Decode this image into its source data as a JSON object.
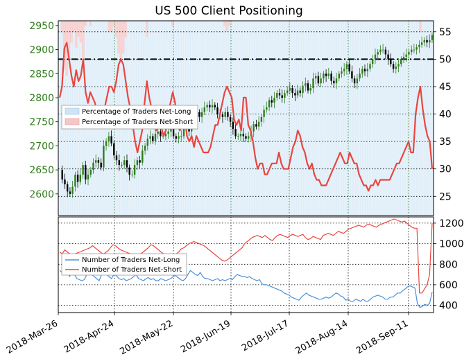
{
  "chart_data": [
    {
      "type": "line",
      "title": "US 500 Client Positioning",
      "xlabel": "",
      "ylabel_left": "",
      "ylabel_right": "",
      "x_ticks": [
        "2018-Mar-26",
        "2018-Apr-24",
        "2018-May-22",
        "2018-Jun-19",
        "2018-Jul-17",
        "2018-Aug-14",
        "2018-Sep-11"
      ],
      "left_axis": {
        "ticks": [
          2600,
          2650,
          2700,
          2750,
          2800,
          2850,
          2900,
          2950
        ],
        "ylim": [
          2555,
          2960
        ],
        "color": "#2f7d1d"
      },
      "right_axis": {
        "ticks": [
          25,
          30,
          35,
          40,
          45,
          50,
          55
        ],
        "ylim": [
          21.5,
          57
        ]
      },
      "legend": {
        "placement": "center-left",
        "entries": [
          "Percentage of Traders Net-Long",
          "Percentage of Traders Net-Short"
        ]
      },
      "grid": true,
      "reference_line": 50,
      "series": [
        {
          "name": "Percentage of Traders Net-Short",
          "color": "#e8463f",
          "axis": "right",
          "values": [
            43,
            45,
            52,
            53,
            50,
            47,
            45,
            48,
            46,
            47,
            50,
            44,
            42,
            44,
            43,
            42,
            40,
            40,
            39,
            41,
            43,
            45,
            45,
            44,
            46,
            49,
            50,
            49,
            46,
            43,
            41,
            38,
            35,
            33,
            35,
            37,
            42,
            46,
            43,
            41,
            40,
            37,
            38,
            38,
            36,
            37,
            40,
            42,
            44,
            42,
            38,
            37,
            38,
            40,
            36,
            35,
            36,
            34,
            36,
            35,
            34,
            33,
            33,
            33,
            34,
            36,
            38,
            38,
            40,
            42,
            44,
            45,
            44,
            43,
            39,
            38,
            39,
            37,
            43,
            43,
            38,
            37,
            35,
            32,
            30,
            31,
            31,
            29,
            29,
            30,
            31,
            31,
            31,
            33,
            31,
            30,
            30,
            30,
            32,
            34,
            35,
            37,
            36,
            34,
            33,
            31,
            30,
            31,
            29,
            28,
            28,
            27,
            27,
            27,
            28,
            29,
            30,
            31,
            32,
            33,
            32,
            31,
            31,
            33,
            32,
            31,
            31,
            29,
            28,
            27,
            27,
            26,
            27,
            27,
            28,
            27,
            28,
            28,
            28,
            28,
            28,
            29,
            30,
            31,
            31,
            32,
            33,
            34,
            35,
            33,
            33,
            40,
            43,
            45,
            41,
            38,
            36,
            35,
            30
          ]
        },
        {
          "name": "Percentage of Traders Net-Long",
          "color": "#4a90d9",
          "axis": "right",
          "note": "complement of net-short (100 - net-short); drawn as band fill only"
        },
        {
          "name": "US 500 price",
          "type": "candlestick",
          "axis": "left",
          "values": [
            2650,
            2630,
            2620,
            2605,
            2600,
            2615,
            2640,
            2625,
            2640,
            2660,
            2630,
            2640,
            2650,
            2665,
            2670,
            2665,
            2655,
            2700,
            2710,
            2720,
            2705,
            2680,
            2670,
            2660,
            2660,
            2670,
            2655,
            2640,
            2640,
            2660,
            2670,
            2665,
            2690,
            2700,
            2715,
            2720,
            2710,
            2725,
            2730,
            2720,
            2720,
            2725,
            2730,
            2735,
            2720,
            2715,
            2720,
            2720,
            2740,
            2745,
            2730,
            2740,
            2755,
            2770,
            2760,
            2770,
            2780,
            2785,
            2780,
            2785,
            2780,
            2765,
            2765,
            2760,
            2770,
            2760,
            2750,
            2735,
            2720,
            2720,
            2725,
            2720,
            2715,
            2720,
            2730,
            2745,
            2740,
            2750,
            2760,
            2775,
            2780,
            2795,
            2790,
            2800,
            2810,
            2805,
            2800,
            2810,
            2815,
            2820,
            2810,
            2805,
            2815,
            2810,
            2825,
            2830,
            2815,
            2820,
            2840,
            2845,
            2830,
            2840,
            2850,
            2845,
            2850,
            2835,
            2830,
            2840,
            2850,
            2855,
            2860,
            2870,
            2855,
            2840,
            2830,
            2840,
            2850,
            2860,
            2855,
            2860,
            2870,
            2880,
            2890,
            2895,
            2900,
            2900,
            2890,
            2880,
            2870,
            2860,
            2865,
            2870,
            2880,
            2885,
            2890,
            2895,
            2900,
            2900,
            2905,
            2910,
            2915,
            2920,
            2915,
            2920,
            2930
          ]
        }
      ]
    },
    {
      "type": "line",
      "title": "",
      "xlabel": "",
      "right_axis": {
        "ticks": [
          400,
          600,
          800,
          1000,
          1200
        ],
        "ylim": [
          330,
          1260
        ]
      },
      "legend": {
        "placement": "top-left",
        "entries": [
          "Number of Traders Net-Long",
          "Number of Traders Net-Short"
        ]
      },
      "grid": true,
      "series": [
        {
          "name": "Number of Traders Net-Long",
          "color": "#4a90d9",
          "values": [
            740,
            720,
            790,
            780,
            680,
            720,
            700,
            660,
            650,
            640,
            650,
            700,
            720,
            700,
            680,
            660,
            640,
            700,
            720,
            700,
            680,
            660,
            700,
            690,
            660,
            650,
            660,
            640,
            650,
            660,
            680,
            700,
            660,
            650,
            640,
            660,
            670,
            650,
            660,
            640,
            640,
            660,
            650,
            640,
            650,
            660,
            680,
            690,
            670,
            650,
            640,
            660,
            700,
            740,
            720,
            700,
            690,
            720,
            680,
            660,
            660,
            650,
            640,
            650,
            660,
            640,
            650,
            640,
            650,
            660,
            650,
            680,
            700,
            690,
            680,
            680,
            670,
            680,
            660,
            650,
            640,
            650,
            610,
            600,
            600,
            590,
            580,
            570,
            560,
            550,
            540,
            520,
            510,
            500,
            480,
            470,
            460,
            450,
            480,
            500,
            520,
            500,
            490,
            480,
            470,
            460,
            460,
            470,
            480,
            470,
            480,
            500,
            520,
            510,
            490,
            480,
            450,
            460,
            440,
            440,
            460,
            450,
            440,
            460,
            440,
            440,
            460,
            480,
            490,
            500,
            490,
            480,
            460,
            460,
            480,
            480,
            500,
            520,
            520,
            540,
            560,
            580,
            590,
            580,
            570,
            420,
            380,
            390,
            410,
            400,
            420,
            530
          ]
        },
        {
          "name": "Number of Traders Net-Short",
          "color": "#e8463f",
          "values": [
            920,
            900,
            940,
            920,
            900,
            880,
            900,
            910,
            920,
            930,
            940,
            950,
            960,
            980,
            960,
            940,
            920,
            900,
            910,
            930,
            960,
            990,
            980,
            960,
            940,
            930,
            920,
            910,
            900,
            890,
            880,
            880,
            900,
            920,
            940,
            960,
            990,
            980,
            960,
            940,
            920,
            900,
            890,
            870,
            860,
            880,
            900,
            920,
            950,
            960,
            980,
            1000,
            1010,
            1020,
            1010,
            1000,
            990,
            980,
            960,
            940,
            920,
            900,
            880,
            860,
            840,
            830,
            840,
            860,
            880,
            900,
            920,
            940,
            960,
            1000,
            1020,
            1040,
            1060,
            1070,
            1080,
            1070,
            1060,
            1080,
            1060,
            1040,
            1030,
            1060,
            1080,
            1090,
            1080,
            1070,
            1060,
            1080,
            1090,
            1080,
            1070,
            1080,
            1090,
            1060,
            1040,
            1050,
            1070,
            1060,
            1050,
            1040,
            1080,
            1090,
            1100,
            1090,
            1080,
            1100,
            1120,
            1110,
            1100,
            1120,
            1140,
            1150,
            1160,
            1170,
            1180,
            1170,
            1160,
            1180,
            1190,
            1180,
            1170,
            1160,
            1180,
            1190,
            1200,
            1210,
            1220,
            1230,
            1240,
            1230,
            1220,
            1210,
            1220,
            1200,
            1180,
            1160,
            1150,
            1150,
            520,
            520,
            560,
            600,
            700,
            1200
          ]
        }
      ]
    }
  ],
  "colors": {
    "price_up": "#2f7d1d",
    "price_down": "#000000",
    "net_short_band": "#f6c7c7",
    "net_long_band": "#cfe5f5",
    "axis_left_text": "#2f7d1d"
  }
}
